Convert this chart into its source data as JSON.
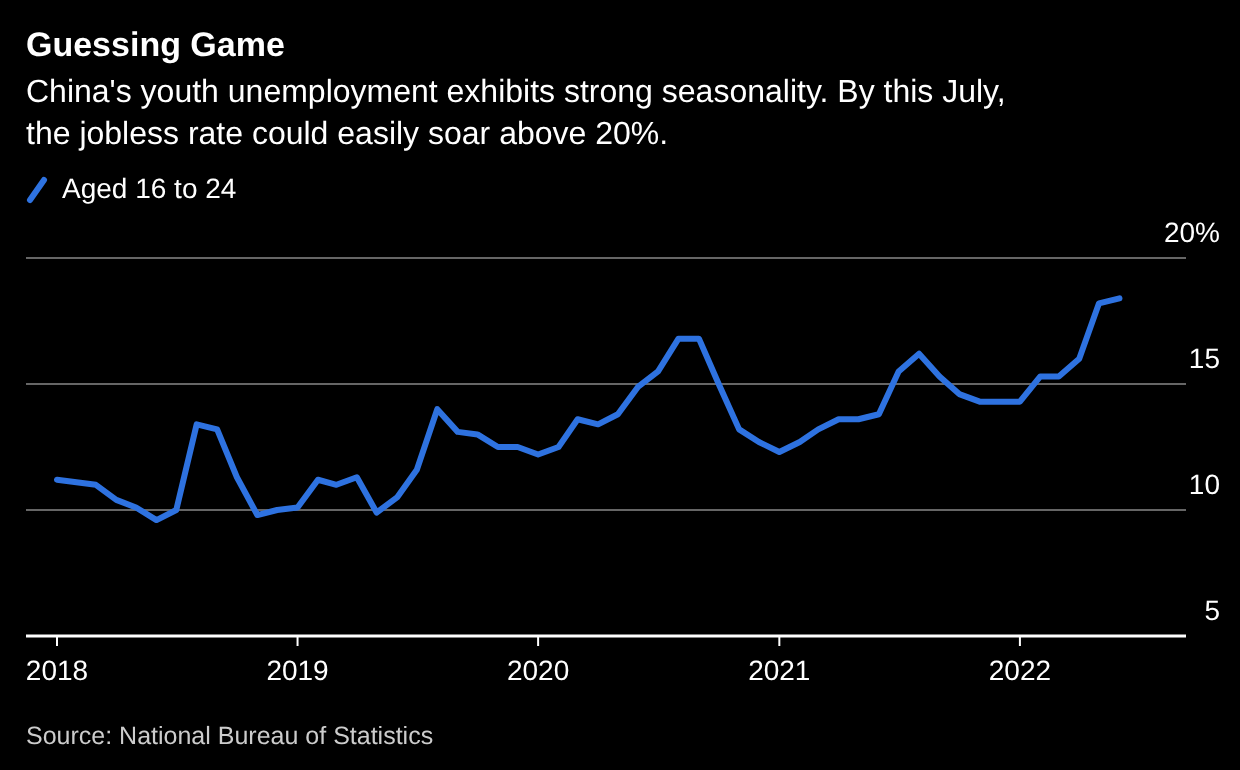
{
  "chart_data": {
    "type": "line",
    "title": "Guessing Game",
    "subtitle": "China's youth unemployment exhibits strong seasonality. By this July, the jobless rate could easily soar above 20%.",
    "x": [
      "2018-01",
      "2018-03",
      "2018-04",
      "2018-05",
      "2018-06",
      "2018-07",
      "2018-08",
      "2018-09",
      "2018-10",
      "2018-11",
      "2018-12",
      "2019-01",
      "2019-02",
      "2019-03",
      "2019-04",
      "2019-05",
      "2019-06",
      "2019-07",
      "2019-08",
      "2019-09",
      "2019-10",
      "2019-11",
      "2019-12",
      "2020-01",
      "2020-02",
      "2020-03",
      "2020-04",
      "2020-05",
      "2020-06",
      "2020-07",
      "2020-08",
      "2020-09",
      "2020-10",
      "2020-11",
      "2020-12",
      "2021-01",
      "2021-02",
      "2021-03",
      "2021-04",
      "2021-05",
      "2021-06",
      "2021-07",
      "2021-08",
      "2021-09",
      "2021-10",
      "2021-11",
      "2021-12",
      "2022-01",
      "2022-02",
      "2022-03",
      "2022-04",
      "2022-05",
      "2022-06"
    ],
    "series": [
      {
        "name": "Aged 16 to 24",
        "color": "#2e72e0",
        "values": [
          11.2,
          11.0,
          10.4,
          10.1,
          9.6,
          10.0,
          13.4,
          13.2,
          11.3,
          9.8,
          10.0,
          10.1,
          11.2,
          11.0,
          11.3,
          9.9,
          10.5,
          11.6,
          14.0,
          13.1,
          13.0,
          12.5,
          12.5,
          12.2,
          12.5,
          13.6,
          13.4,
          13.8,
          14.9,
          15.5,
          16.8,
          16.8,
          15.0,
          13.2,
          12.7,
          12.3,
          12.7,
          13.2,
          13.6,
          13.6,
          13.8,
          15.5,
          16.2,
          15.3,
          14.6,
          14.3,
          14.3,
          14.3,
          15.3,
          15.3,
          16.0,
          18.2,
          18.4
        ]
      }
    ],
    "xlim": [
      "2017-11-15",
      "2022-09-10"
    ],
    "xticks": [
      {
        "value": "2018-01",
        "label": "2018"
      },
      {
        "value": "2019-01",
        "label": "2019"
      },
      {
        "value": "2020-01",
        "label": "2020"
      },
      {
        "value": "2021-01",
        "label": "2021"
      },
      {
        "value": "2022-01",
        "label": "2022"
      }
    ],
    "ylim": [
      5,
      20
    ],
    "yticks": [
      5,
      10,
      15,
      {
        "value": 20,
        "label": "20%"
      }
    ],
    "grid": "y",
    "legend": "top left",
    "line_style": "solid",
    "marker": "none",
    "annotations": [
      "Source: National Bureau of Statistics"
    ]
  }
}
